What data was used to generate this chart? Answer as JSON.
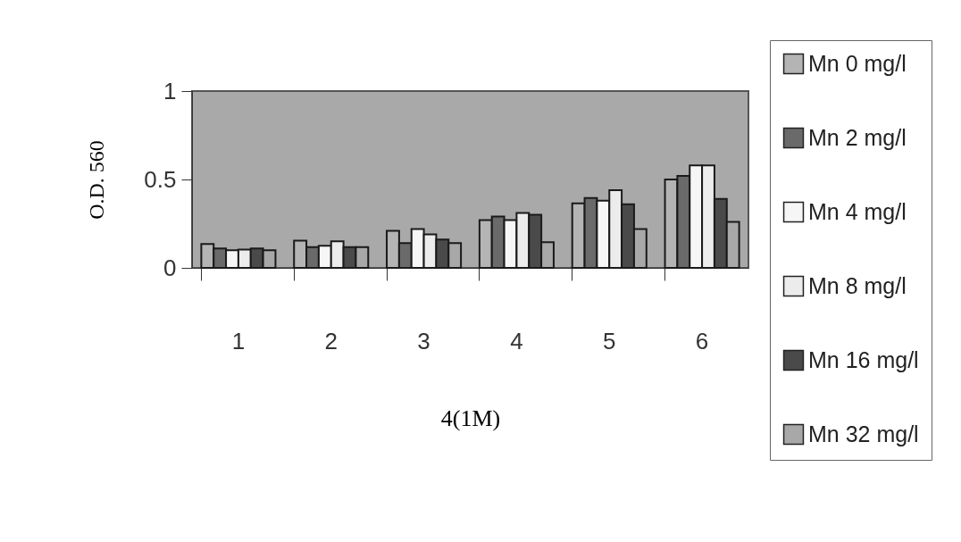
{
  "chart_data": {
    "type": "bar",
    "xlabel": "4(1M)",
    "ylabel": "O.D. 560",
    "categories": [
      "1",
      "2",
      "3",
      "4",
      "5",
      "6"
    ],
    "series": [
      {
        "name": "Mn 0 mg/l",
        "color": "#b4b4b4",
        "values": [
          0.135,
          0.154,
          0.21,
          0.27,
          0.365,
          0.5
        ]
      },
      {
        "name": "Mn 2 mg/l",
        "color": "#6a6a6a",
        "values": [
          0.11,
          0.117,
          0.14,
          0.29,
          0.395,
          0.52
        ]
      },
      {
        "name": "Mn 4 mg/l",
        "color": "#f6f6f6",
        "values": [
          0.1,
          0.125,
          0.22,
          0.27,
          0.38,
          0.58
        ]
      },
      {
        "name": "Mn 8 mg/l",
        "color": "#ececec",
        "values": [
          0.103,
          0.15,
          0.19,
          0.31,
          0.44,
          0.58
        ]
      },
      {
        "name": "Mn 16 mg/l",
        "color": "#4a4a4a",
        "values": [
          0.11,
          0.117,
          0.16,
          0.3,
          0.36,
          0.39
        ]
      },
      {
        "name": "Mn 32 mg/l",
        "color": "#a8a8a8",
        "values": [
          0.1,
          0.117,
          0.14,
          0.145,
          0.22,
          0.26
        ]
      }
    ],
    "ylim": [
      0,
      1
    ],
    "yticks": [
      0,
      0.5,
      1
    ],
    "grid": false,
    "legend": "right"
  }
}
